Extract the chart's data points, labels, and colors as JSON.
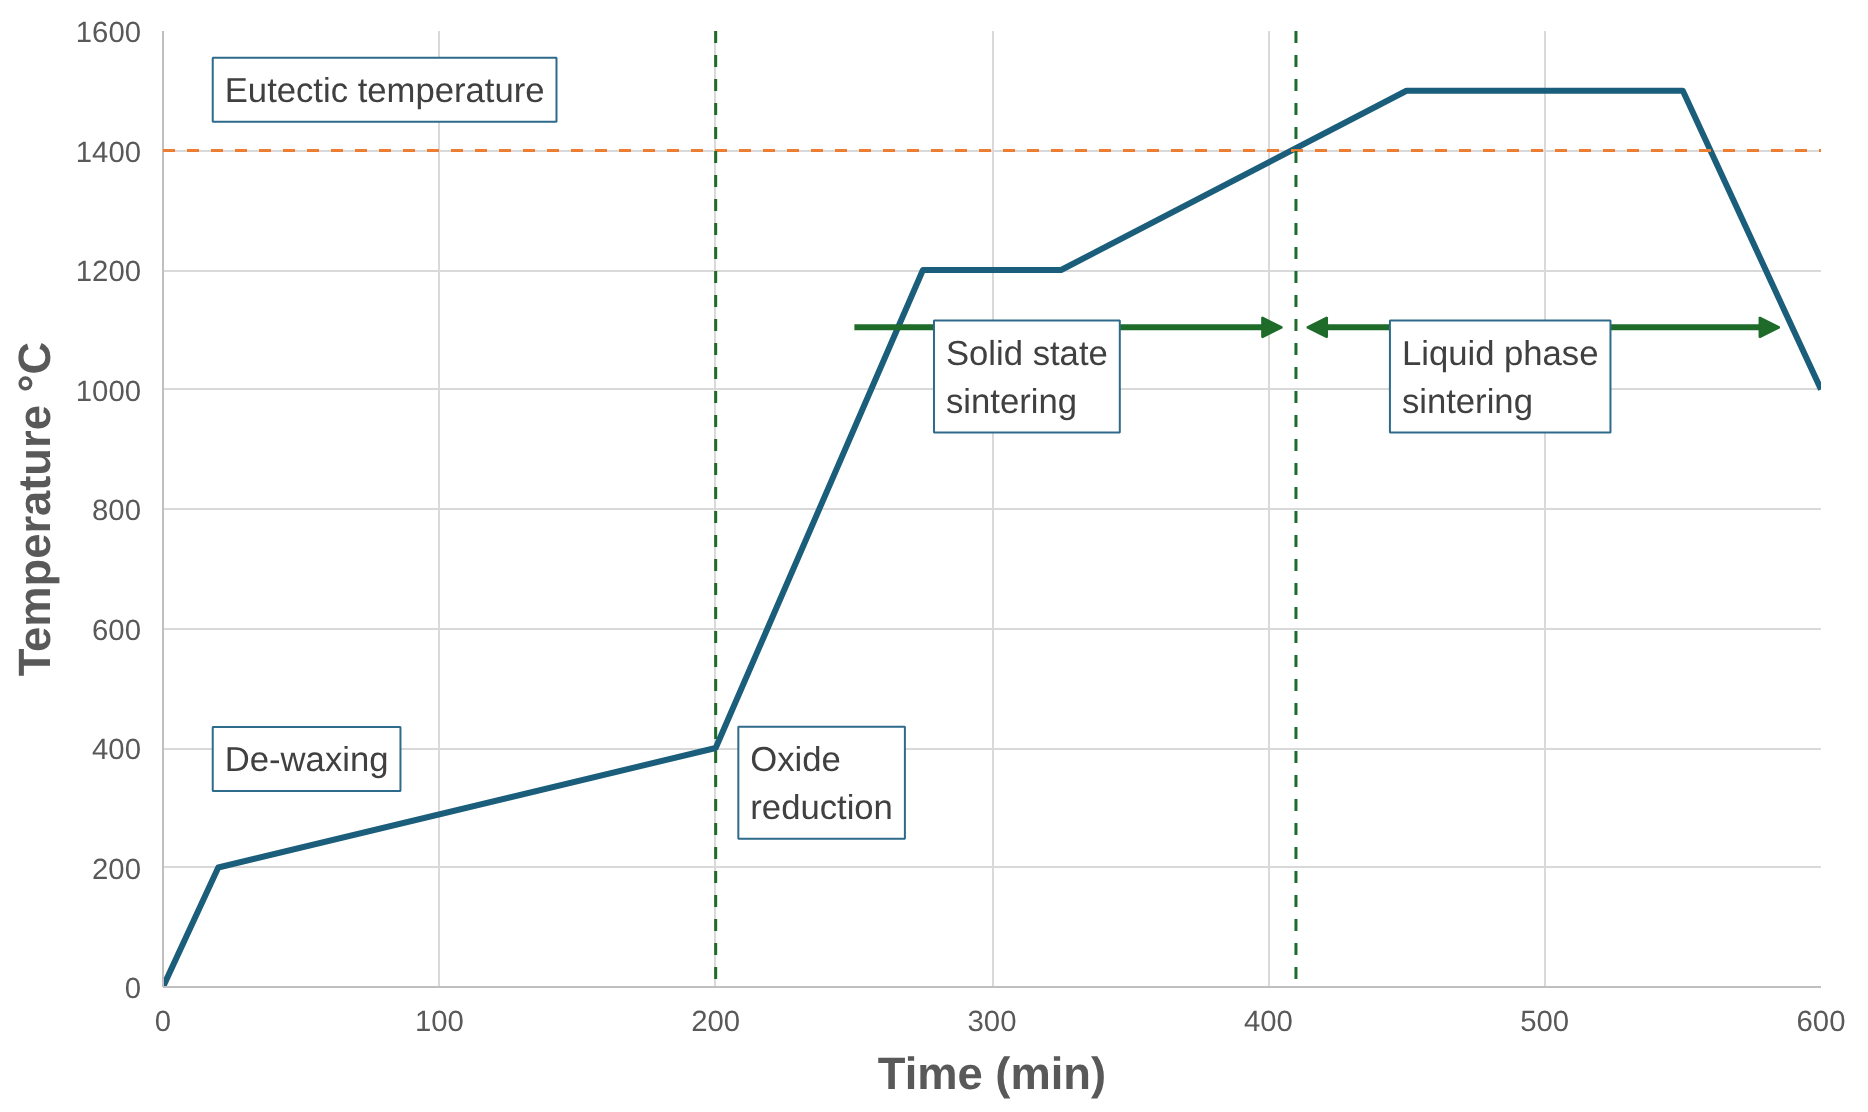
{
  "chart_data": {
    "type": "line",
    "xlabel": "Time (min)",
    "ylabel": "Temperature °C",
    "x": [
      0,
      20,
      200,
      275,
      325,
      450,
      550,
      600
    ],
    "series": [
      {
        "color": "#1b5e7b",
        "values": [
          0,
          200,
          400,
          1200,
          1200,
          1500,
          1500,
          1000
        ]
      }
    ],
    "xlim": [
      0,
      600
    ],
    "ylim": [
      0,
      1600
    ],
    "xticks": [
      0,
      100,
      200,
      300,
      400,
      500,
      600
    ],
    "yticks": [
      0,
      200,
      400,
      600,
      800,
      1000,
      1200,
      1400,
      1600
    ],
    "grid": true,
    "marker": "none",
    "line_style": "solid",
    "ref_lines": [
      {
        "axis": "y",
        "value": 1400,
        "color": "#ed7d31",
        "line_style": "dashed"
      },
      {
        "axis": "x",
        "value": 200,
        "color": "#1e6b2a",
        "line_style": "dashed"
      },
      {
        "axis": "x",
        "value": 410,
        "color": "#1e6b2a",
        "line_style": "dashed"
      }
    ],
    "annotations": [
      "Eutectic temperature",
      "De-waxing",
      "Oxide reduction",
      "Solid state sintering",
      "Liquid phase sintering"
    ]
  }
}
